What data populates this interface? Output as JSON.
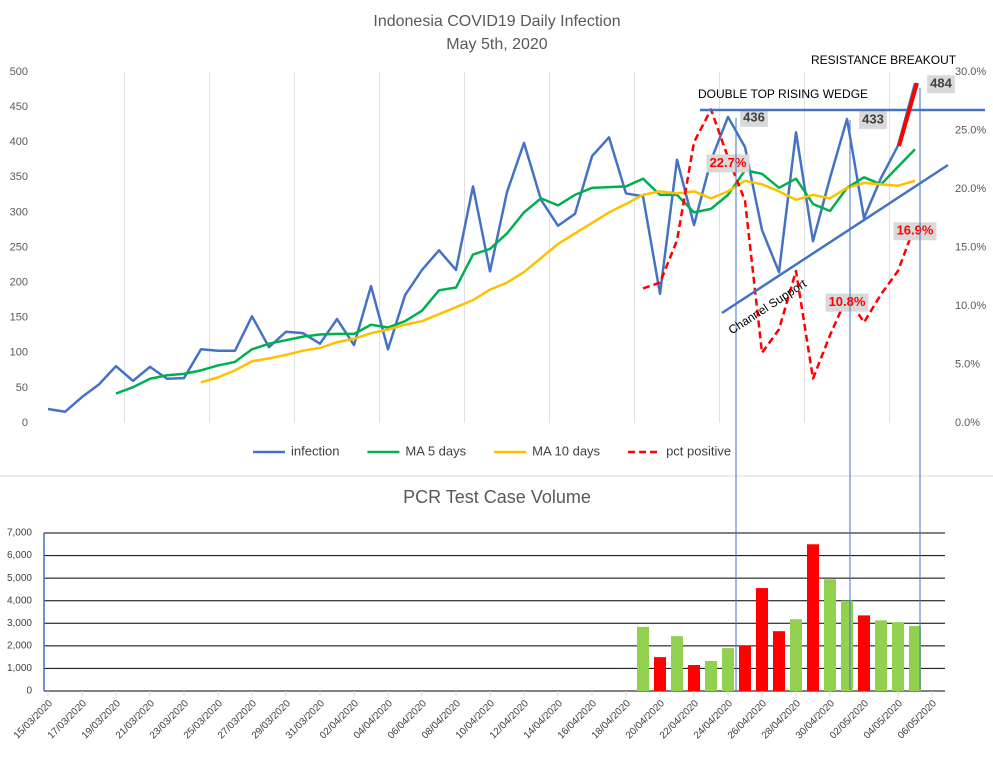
{
  "chart_data": [
    {
      "type": "line",
      "title": "Indonesia COVID19 Daily Infection",
      "subtitle": "May 5th, 2020",
      "annotations": [
        "DOUBLE TOP RISING WEDGE",
        "RESISTANCE BREAKOUT",
        "Channel Support"
      ],
      "ylim": [
        0,
        500
      ],
      "yticks": [
        0,
        50,
        100,
        150,
        200,
        250,
        300,
        350,
        400,
        450,
        500
      ],
      "y2lim": [
        0,
        30
      ],
      "y2ticks": [
        {
          "value": 0,
          "label": "0.0%"
        },
        {
          "value": 5,
          "label": "5.0%"
        },
        {
          "value": 10,
          "label": "10.0%"
        },
        {
          "value": 15,
          "label": "15.0%"
        },
        {
          "value": 20,
          "label": "20.0%"
        },
        {
          "value": 25,
          "label": "25.0%"
        },
        {
          "value": 30,
          "label": "30.0%"
        }
      ],
      "xgrid": true,
      "legend": "bottom",
      "series": [
        {
          "name": "infection",
          "color": "#4472c4",
          "dash": false,
          "values": [
            20,
            16,
            37,
            55,
            81,
            60,
            80,
            63,
            64,
            105,
            103,
            103,
            152,
            108,
            130,
            128,
            113,
            148,
            111,
            195,
            105,
            182,
            218,
            246,
            218,
            337,
            216,
            329,
            399,
            318,
            281,
            298,
            380,
            407,
            327,
            323,
            184,
            375,
            282,
            374,
            436,
            393,
            275,
            215,
            414,
            259,
            349,
            433,
            292,
            349,
            395,
            484
          ],
          "value_labels": [
            null,
            null,
            null,
            null,
            null,
            null,
            null,
            null,
            null,
            null,
            null,
            null,
            null,
            null,
            null,
            null,
            null,
            null,
            null,
            null,
            null,
            null,
            null,
            null,
            null,
            null,
            null,
            null,
            null,
            null,
            null,
            null,
            null,
            null,
            null,
            null,
            null,
            null,
            null,
            null,
            "436",
            null,
            null,
            null,
            null,
            null,
            null,
            "433",
            null,
            null,
            null,
            "484"
          ]
        },
        {
          "name": "MA 5 days",
          "color": "#00b050",
          "dash": false,
          "values": [
            null,
            null,
            null,
            null,
            42,
            51,
            63,
            68,
            70,
            75,
            82,
            87,
            105,
            113,
            118,
            123,
            126,
            127,
            127,
            140,
            136,
            145,
            160,
            189,
            193,
            240,
            248,
            270,
            300,
            320,
            310,
            325,
            335,
            336,
            337,
            348,
            325,
            325,
            300,
            305,
            325,
            360,
            355,
            335,
            348,
            312,
            302,
            335,
            350,
            340,
            365,
            390
          ]
        },
        {
          "name": "MA 10 days",
          "color": "#ffc000",
          "dash": false,
          "values": [
            null,
            null,
            null,
            null,
            null,
            null,
            null,
            null,
            null,
            58,
            65,
            75,
            88,
            92,
            97,
            103,
            107,
            115,
            120,
            128,
            133,
            140,
            145,
            155,
            165,
            175,
            190,
            200,
            215,
            235,
            255,
            270,
            285,
            300,
            312,
            325,
            330,
            327,
            330,
            320,
            330,
            345,
            340,
            330,
            318,
            325,
            320,
            335,
            342,
            340,
            338,
            345
          ]
        },
        {
          "name": "pct positive",
          "color": "#ff0000",
          "dash": true,
          "axis": "y2",
          "values": [
            null,
            null,
            null,
            null,
            null,
            null,
            null,
            null,
            null,
            null,
            null,
            null,
            null,
            null,
            null,
            null,
            null,
            null,
            null,
            null,
            null,
            null,
            null,
            null,
            null,
            null,
            null,
            null,
            null,
            null,
            null,
            null,
            null,
            null,
            null,
            11.5,
            12,
            15.6,
            24,
            26.8,
            22.7,
            19,
            6,
            8,
            13,
            3.8,
            7.5,
            10.8,
            8.6,
            11,
            13,
            16.9
          ],
          "value_labels": [
            null,
            null,
            null,
            null,
            null,
            null,
            null,
            null,
            null,
            null,
            null,
            null,
            null,
            null,
            null,
            null,
            null,
            null,
            null,
            null,
            null,
            null,
            null,
            null,
            null,
            null,
            null,
            null,
            null,
            null,
            null,
            null,
            null,
            null,
            null,
            null,
            null,
            null,
            null,
            null,
            "22.7%",
            null,
            null,
            null,
            null,
            null,
            null,
            "10.8%",
            null,
            null,
            null,
            "16.9%"
          ]
        }
      ]
    },
    {
      "type": "bar",
      "title": "PCR Test Case Volume",
      "categories": [
        "15/03/2020",
        null,
        "17/03/2020",
        null,
        "19/03/2020",
        null,
        "21/03/2020",
        null,
        "23/03/2020",
        null,
        "25/03/2020",
        null,
        "27/03/2020",
        null,
        "29/03/2020",
        null,
        "31/03/2020",
        null,
        "02/04/2020",
        null,
        "04/04/2020",
        null,
        "06/04/2020",
        null,
        "08/04/2020",
        null,
        "10/04/2020",
        null,
        "12/04/2020",
        null,
        "14/04/2020",
        null,
        "16/04/2020",
        null,
        "18/04/2020",
        null,
        "20/04/2020",
        null,
        "22/04/2020",
        null,
        "24/04/2020",
        null,
        "26/04/2020",
        null,
        "28/04/2020",
        null,
        "30/04/2020",
        null,
        "02/05/2020",
        null,
        "04/05/2020",
        null,
        "06/05/2020"
      ],
      "values": [
        null,
        null,
        null,
        null,
        null,
        null,
        null,
        null,
        null,
        null,
        null,
        null,
        null,
        null,
        null,
        null,
        null,
        null,
        null,
        null,
        null,
        null,
        null,
        null,
        null,
        null,
        null,
        null,
        null,
        null,
        null,
        null,
        null,
        null,
        null,
        2840,
        1500,
        2430,
        1150,
        1330,
        1900,
        2000,
        4560,
        2650,
        3180,
        6500,
        4950,
        4000,
        3350,
        3130,
        3050,
        2880,
        null
      ],
      "colors": [
        null,
        null,
        null,
        null,
        null,
        null,
        null,
        null,
        null,
        null,
        null,
        null,
        null,
        null,
        null,
        null,
        null,
        null,
        null,
        null,
        null,
        null,
        null,
        null,
        null,
        null,
        null,
        null,
        null,
        null,
        null,
        null,
        null,
        null,
        null,
        "#92d050",
        "#ff0000",
        "#92d050",
        "#ff0000",
        "#92d050",
        "#92d050",
        "#ff0000",
        "#ff0000",
        "#ff0000",
        "#92d050",
        "#ff0000",
        "#92d050",
        "#92d050",
        "#ff0000",
        "#92d050",
        "#92d050",
        "#92d050",
        null
      ],
      "ylim": [
        0,
        7000
      ],
      "yticks": [
        0,
        {
          "value": 1000,
          "label": "1,000"
        },
        {
          "value": 2000,
          "label": "2,000"
        },
        {
          "value": 3000,
          "label": "3,000"
        },
        {
          "value": 4000,
          "label": "4,000"
        },
        {
          "value": 5000,
          "label": "5,000"
        },
        {
          "value": 6000,
          "label": "6,000"
        },
        {
          "value": 7000,
          "label": "7,000"
        }
      ],
      "grid": true
    }
  ]
}
